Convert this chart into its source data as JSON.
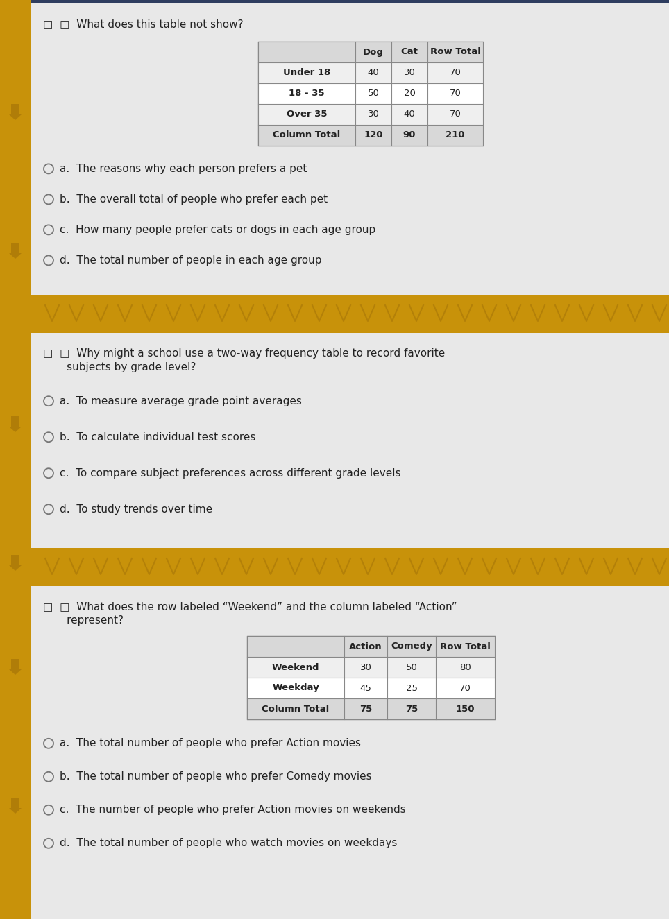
{
  "bg_dark_blue": "#2e3d5f",
  "bg_card": "#e8e8e8",
  "bg_separator": "#c8920a",
  "left_bar_color": "#c8920a",
  "text_dark": "#222222",
  "circle_ec": "#777777",
  "q1_line1": "□  □  What does this table not show?",
  "q1_table_headers": [
    "",
    "Dog",
    "Cat",
    "Row Total"
  ],
  "q1_table_rows": [
    [
      "Under 18",
      "40",
      "30",
      "70"
    ],
    [
      "18 - 35",
      "50",
      "20",
      "70"
    ],
    [
      "Over 35",
      "30",
      "40",
      "70"
    ],
    [
      "Column Total",
      "120",
      "90",
      "210"
    ]
  ],
  "q1_options": [
    "a.  The reasons why each person prefers a pet",
    "b.  The overall total of people who prefer each pet",
    "c.  How many people prefer cats or dogs in each age group",
    "d.  The total number of people in each age group"
  ],
  "q2_line1": "□  □  Why might a school use a two-way frequency table to record favorite",
  "q2_line2": "       subjects by grade level?",
  "q2_options": [
    "a.  To measure average grade point averages",
    "b.  To calculate individual test scores",
    "c.  To compare subject preferences across different grade levels",
    "d.  To study trends over time"
  ],
  "q3_line1": "□  □  What does the row labeled “Weekend” and the column labeled “Action”",
  "q3_line2": "       represent?",
  "q3_table_headers": [
    "",
    "Action",
    "Comedy",
    "Row Total"
  ],
  "q3_table_rows": [
    [
      "Weekend",
      "30",
      "50",
      "80"
    ],
    [
      "Weekday",
      "45",
      "25",
      "70"
    ],
    [
      "Column Total",
      "75",
      "75",
      "150"
    ]
  ],
  "q3_options": [
    "a.  The total number of people who prefer Action movies",
    "b.  The total number of people who prefer Comedy movies",
    "c.  The number of people who prefer Action movies on weekends",
    "d.  The total number of people who watch movies on weekdays"
  ]
}
